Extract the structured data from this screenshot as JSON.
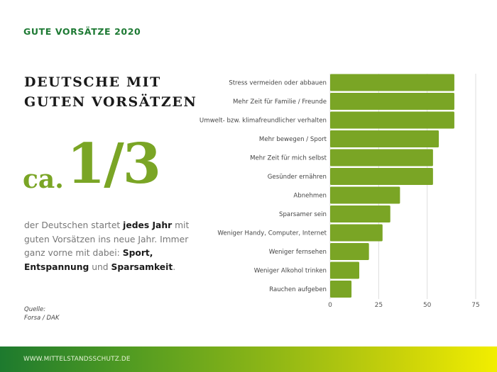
{
  "header": {
    "kicker": "GUTE VORSÄTZE 2020"
  },
  "headline": {
    "line1": "DEUTSCHE MIT",
    "line2": "GUTEN VORSÄTZEN"
  },
  "stat": {
    "prefix": "ca.",
    "value": "1/3"
  },
  "body": {
    "t1": "der Deutschen startet ",
    "b1": "jedes Jahr",
    "t2": " mit guten Vorsätzen ins neue Jahr. Immer ganz vorne mit dabei: ",
    "b2": "Sport, Entspannung",
    "t3": " und ",
    "b3": "Sparsamkeit",
    "t4": "."
  },
  "source": {
    "label": "Quelle:",
    "value": "Forsa / DAK"
  },
  "footer": {
    "url": "WWW.MITTELSTANDSSCHUTZ.DE"
  },
  "colors": {
    "bar": "#7aa525",
    "accent": "#1e7a34"
  },
  "chart_data": {
    "type": "bar",
    "orientation": "horizontal",
    "categories": [
      "Stress vermeiden oder abbauen",
      "Mehr Zeit für Familie / Freunde",
      "Umwelt- bzw. klimafreundlicher verhalten",
      "Mehr bewegen / Sport",
      "Mehr Zeit für mich selbst",
      "Gesünder ernähren",
      "Abnehmen",
      "Sparsamer sein",
      "Weniger Handy, Computer, Internet",
      "Weniger fernsehen",
      "Weniger Alkohol trinken",
      "Rauchen aufgeben"
    ],
    "values": [
      64,
      64,
      64,
      56,
      53,
      53,
      36,
      31,
      27,
      20,
      15,
      11
    ],
    "xlim": [
      0,
      75
    ],
    "xticks": [
      "0",
      "25",
      "50",
      "75"
    ],
    "grid": true,
    "title": "",
    "xlabel": "",
    "ylabel": ""
  }
}
